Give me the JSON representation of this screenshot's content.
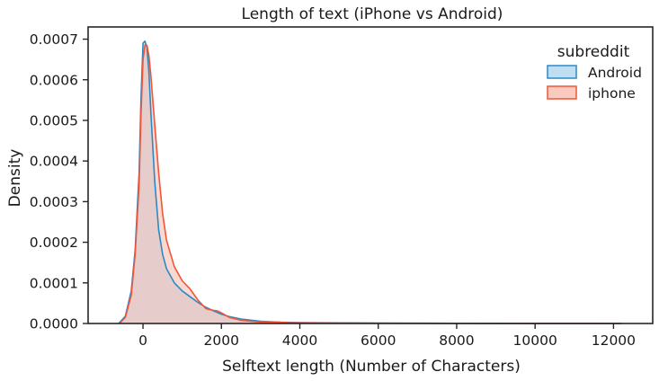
{
  "chart_data": {
    "type": "area",
    "title": "Length of text (iPhone vs Android)",
    "xlabel": "Selftext length (Number of Characters)",
    "ylabel": "Density",
    "xlim": [
      -1400,
      13000
    ],
    "ylim": [
      0,
      0.00073
    ],
    "x_ticks": [
      0,
      2000,
      4000,
      6000,
      8000,
      10000,
      12000
    ],
    "x_tick_labels": [
      "0",
      "2000",
      "4000",
      "6000",
      "8000",
      "10000",
      "12000"
    ],
    "y_ticks": [
      0,
      0.0001,
      0.0002,
      0.0003,
      0.0004,
      0.0005,
      0.0006,
      0.0007
    ],
    "y_tick_labels": [
      "0.0000",
      "0.0001",
      "0.0002",
      "0.0003",
      "0.0004",
      "0.0005",
      "0.0006",
      "0.0007"
    ],
    "grid": false,
    "legend": {
      "title": "subreddit",
      "placement": "top-right",
      "entries": [
        "Android",
        "iphone"
      ]
    },
    "series": [
      {
        "name": "Android",
        "line_color": "#2a8ac6",
        "fill_color": "#a9d3ec",
        "points": [
          [
            -620,
            0
          ],
          [
            -450,
            1.8e-05
          ],
          [
            -300,
            8e-05
          ],
          [
            -200,
            0.00018
          ],
          [
            -100,
            0.00037
          ],
          [
            -50,
            0.00056
          ],
          [
            0,
            0.00069
          ],
          [
            50,
            0.000695
          ],
          [
            100,
            0.00068
          ],
          [
            150,
            0.00062
          ],
          [
            200,
            0.00052
          ],
          [
            300,
            0.00035
          ],
          [
            400,
            0.00023
          ],
          [
            500,
            0.00017
          ],
          [
            600,
            0.000135
          ],
          [
            800,
            0.0001
          ],
          [
            1000,
            8e-05
          ],
          [
            1200,
            6.6e-05
          ],
          [
            1400,
            5.2e-05
          ],
          [
            1600,
            4e-05
          ],
          [
            1800,
            3.1e-05
          ],
          [
            2000,
            2.3e-05
          ],
          [
            2200,
            1.7e-05
          ],
          [
            2500,
            1.1e-05
          ],
          [
            3000,
            5.5e-06
          ],
          [
            3500,
            3e-06
          ],
          [
            4000,
            2e-06
          ],
          [
            5000,
            1.5e-06
          ],
          [
            6000,
            8e-07
          ],
          [
            8000,
            4e-07
          ],
          [
            10000,
            2e-07
          ],
          [
            12200,
            5e-08
          ]
        ]
      },
      {
        "name": "iphone",
        "line_color": "#f0553a",
        "fill_color": "#f8b8a8",
        "points": [
          [
            -600,
            0
          ],
          [
            -450,
            1.5e-05
          ],
          [
            -300,
            7e-05
          ],
          [
            -200,
            0.00017
          ],
          [
            -100,
            0.00034
          ],
          [
            -50,
            0.00052
          ],
          [
            0,
            0.00065
          ],
          [
            50,
            0.000685
          ],
          [
            100,
            0.000685
          ],
          [
            150,
            0.00066
          ],
          [
            200,
            0.00061
          ],
          [
            300,
            0.00049
          ],
          [
            400,
            0.00037
          ],
          [
            500,
            0.00027
          ],
          [
            600,
            0.000205
          ],
          [
            800,
            0.00014
          ],
          [
            1000,
            0.000105
          ],
          [
            1200,
            8.5e-05
          ],
          [
            1400,
            5.8e-05
          ],
          [
            1600,
            3.7e-05
          ],
          [
            1750,
            3.3e-05
          ],
          [
            1900,
            3.1e-05
          ],
          [
            2000,
            2.6e-05
          ],
          [
            2200,
            1.5e-05
          ],
          [
            2500,
            8e-06
          ],
          [
            3000,
            3.5e-06
          ],
          [
            3400,
            3.5e-06
          ],
          [
            3700,
            2.2e-06
          ],
          [
            4200,
            1.5e-06
          ],
          [
            5000,
            1e-06
          ],
          [
            6000,
            6e-07
          ],
          [
            8000,
            4e-07
          ],
          [
            10000,
            2e-07
          ],
          [
            12200,
            5e-08
          ]
        ]
      }
    ]
  }
}
